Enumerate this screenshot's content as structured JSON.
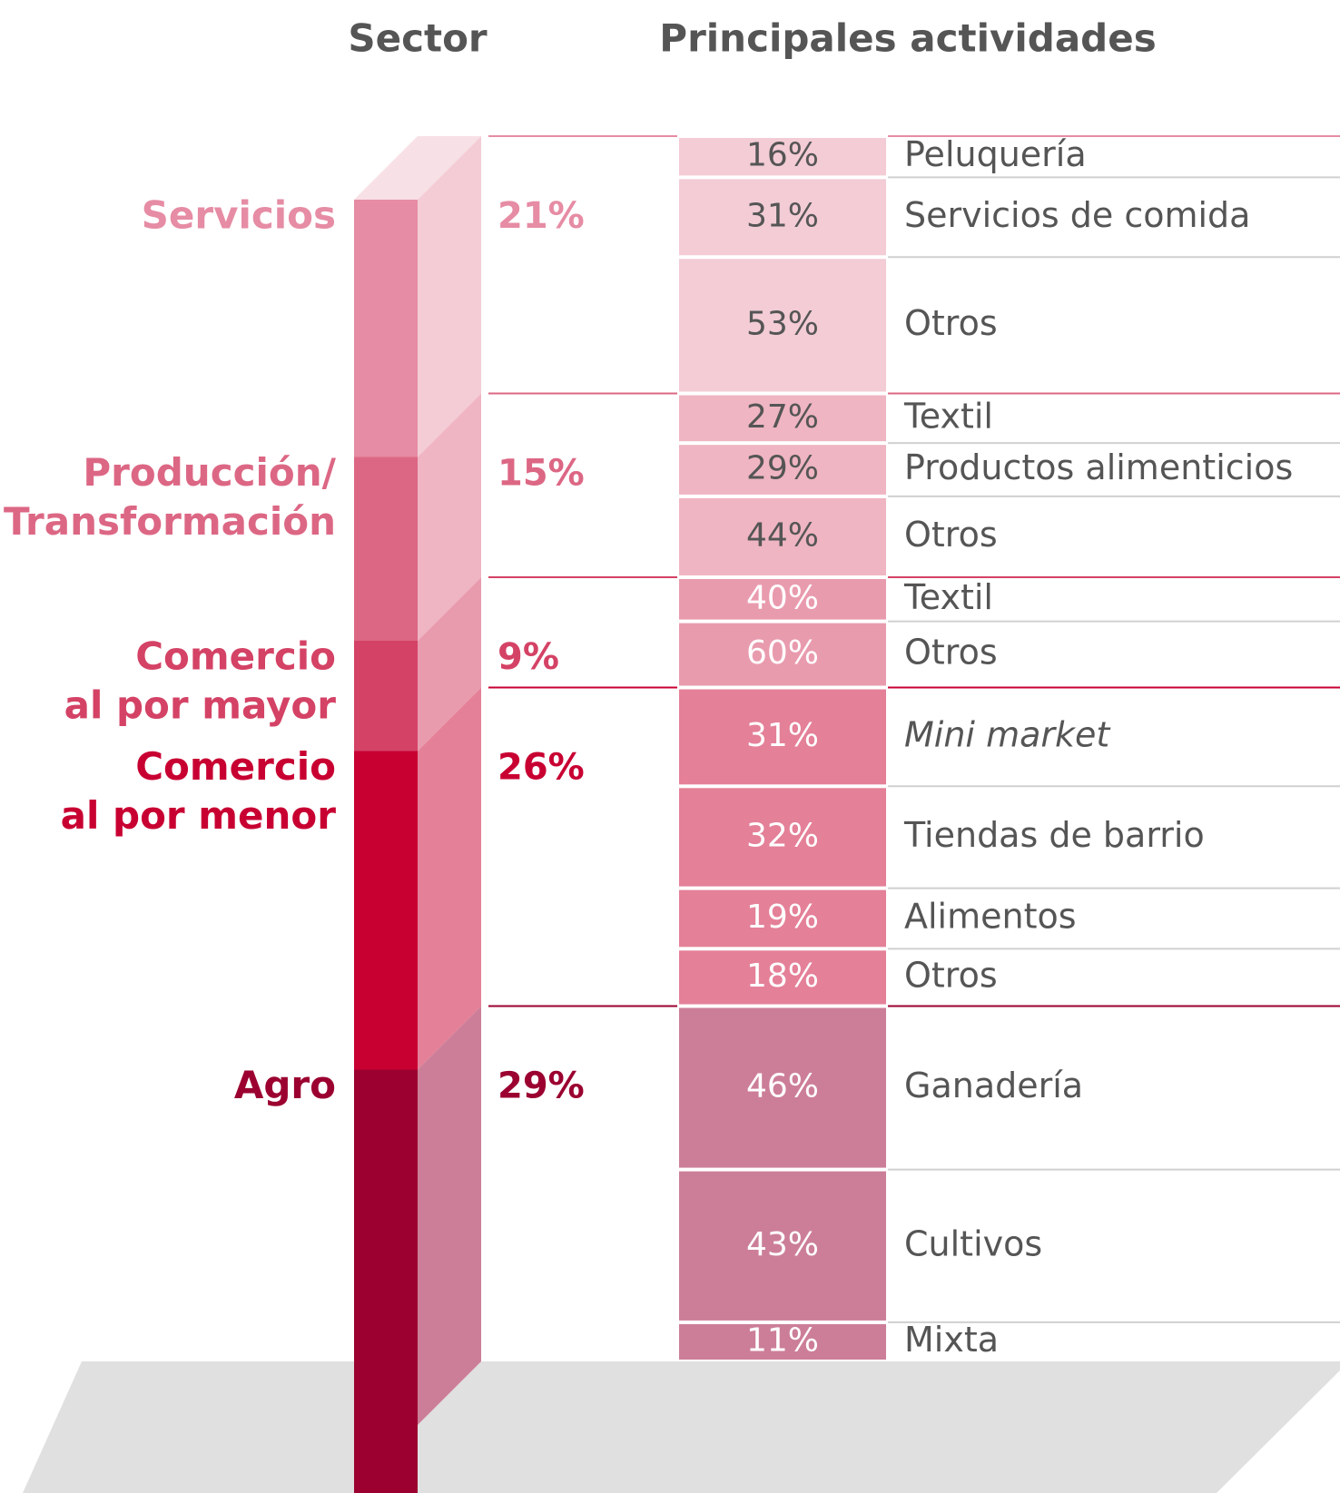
{
  "chart_data": {
    "type": "stacked_bar",
    "headers": [
      "Sector",
      "Principales actividades"
    ],
    "series": [
      {
        "name": [
          "Servicios"
        ],
        "value": 21,
        "value_label": "21%",
        "color": "#e68ca4",
        "light_color": "#f3ccd6",
        "activities": [
          {
            "name": "Peluquería",
            "value": 16,
            "value_label": "16%"
          },
          {
            "name": "Servicios de comida",
            "value": 31,
            "value_label": "31%"
          },
          {
            "name": "Otros",
            "value": 53,
            "value_label": "53%"
          }
        ]
      },
      {
        "name": [
          "Producción/",
          "Transformación"
        ],
        "value": 15,
        "value_label": "15%",
        "color": "#dc6784",
        "light_color": "#efb5c2",
        "activities": [
          {
            "name": "Textil",
            "value": 27,
            "value_label": "27%"
          },
          {
            "name": "Productos alimenticios",
            "value": 29,
            "value_label": "29%"
          },
          {
            "name": "Otros",
            "value": 44,
            "value_label": "44%"
          }
        ]
      },
      {
        "name": [
          "Comercio",
          "al por mayor"
        ],
        "value": 9,
        "value_label": "9%",
        "color": "#d44265",
        "light_color": "#e99bae",
        "activities": [
          {
            "name": "Textil",
            "value": 40,
            "value_label": "40%"
          },
          {
            "name": "Otros",
            "value": 60,
            "value_label": "60%"
          }
        ]
      },
      {
        "name": [
          "Comercio",
          "al por menor"
        ],
        "value": 26,
        "value_label": "26%",
        "color": "#c80032",
        "light_color": "#e48098",
        "activities": [
          {
            "name": "Mini market",
            "value": 31,
            "value_label": "31%",
            "italic": true
          },
          {
            "name": "Tiendas de barrio",
            "value": 32,
            "value_label": "32%"
          },
          {
            "name": "Alimentos",
            "value": 19,
            "value_label": "19%"
          },
          {
            "name": "Otros",
            "value": 18,
            "value_label": "18%"
          }
        ]
      },
      {
        "name": [
          "Agro"
        ],
        "value": 29,
        "value_label": "29%",
        "color": "#9b0030",
        "light_color": "#cc7e98",
        "activities": [
          {
            "name": "Ganadería",
            "value": 46,
            "value_label": "46%"
          },
          {
            "name": "Cultivos",
            "value": 43,
            "value_label": "43%"
          },
          {
            "name": "Mixta",
            "value": 11,
            "value_label": "11%"
          }
        ]
      }
    ]
  }
}
